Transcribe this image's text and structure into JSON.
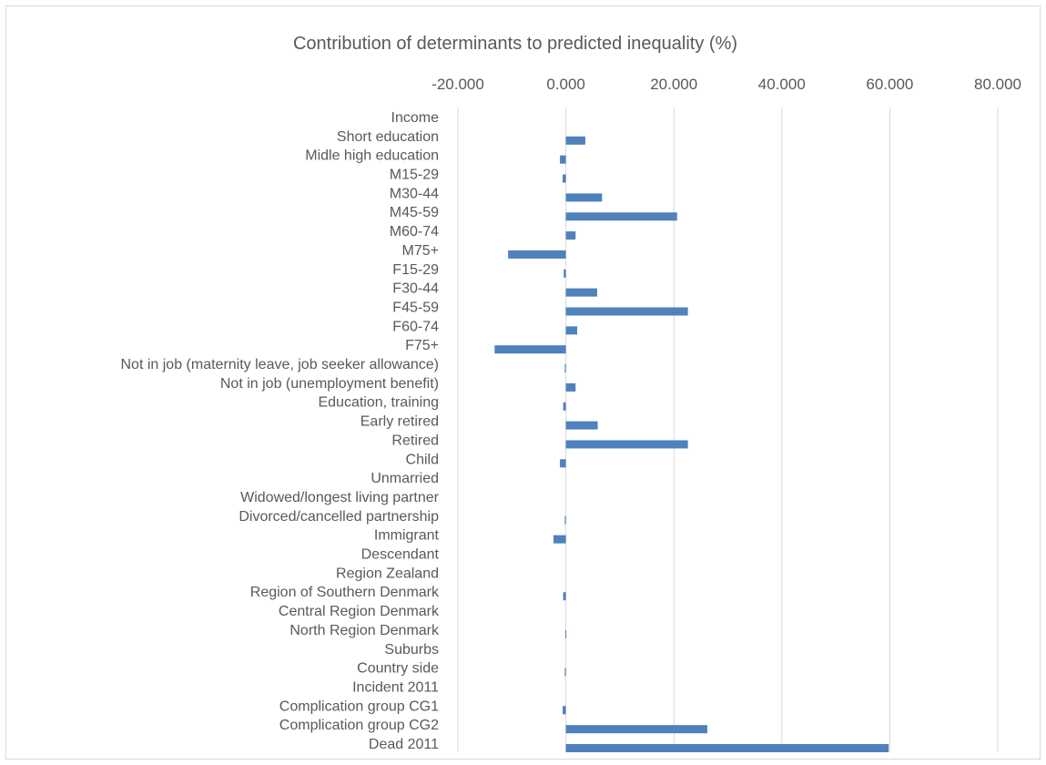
{
  "chart_data": {
    "type": "bar",
    "orientation": "horizontal",
    "title": "Contribution of determinants to predicted inequality (%)",
    "xlabel": "",
    "ylabel": "",
    "xlim": [
      -20,
      80
    ],
    "tick_values": [
      -20,
      0,
      20,
      40,
      60,
      80
    ],
    "tick_labels": [
      "-20.000",
      "0.000",
      "20.000",
      "40.000",
      "60.000",
      "80.000"
    ],
    "axis_position": "top",
    "grid": true,
    "legend": "none",
    "bar_color": "#4f81bd",
    "categories": [
      "Income",
      "Short education",
      "Midle high education",
      "M15-29",
      "M30-44",
      "M45-59",
      "M60-74",
      "M75+",
      "F15-29",
      "F30-44",
      "F45-59",
      "F60-74",
      "F75+",
      "Not in job (maternity leave, job seeker allowance)",
      "Not in job (unemployment benefit)",
      "Education, training",
      "Early retired",
      "Retired",
      "Child",
      "Unmarried",
      "Widowed/longest living partner",
      "Divorced/cancelled partnership",
      "Immigrant",
      "Descendant",
      "Region Zealand",
      "Region of Southern Denmark",
      "Central Region Denmark",
      "North Region Denmark",
      "Suburbs",
      "Country side",
      "Incident 2011",
      "Complication group CG1",
      "Complication group CG2",
      "Dead 2011"
    ],
    "values": [
      0,
      3.6,
      -1.1,
      -0.6,
      6.7,
      20.6,
      1.8,
      -10.7,
      -0.4,
      5.8,
      22.6,
      2.1,
      -13.2,
      -0.2,
      1.8,
      -0.5,
      5.9,
      22.6,
      -1.1,
      0,
      0,
      -0.2,
      -2.3,
      0,
      0,
      -0.5,
      0,
      -0.1,
      0,
      -0.2,
      0,
      -0.6,
      26.2,
      59.8
    ]
  }
}
